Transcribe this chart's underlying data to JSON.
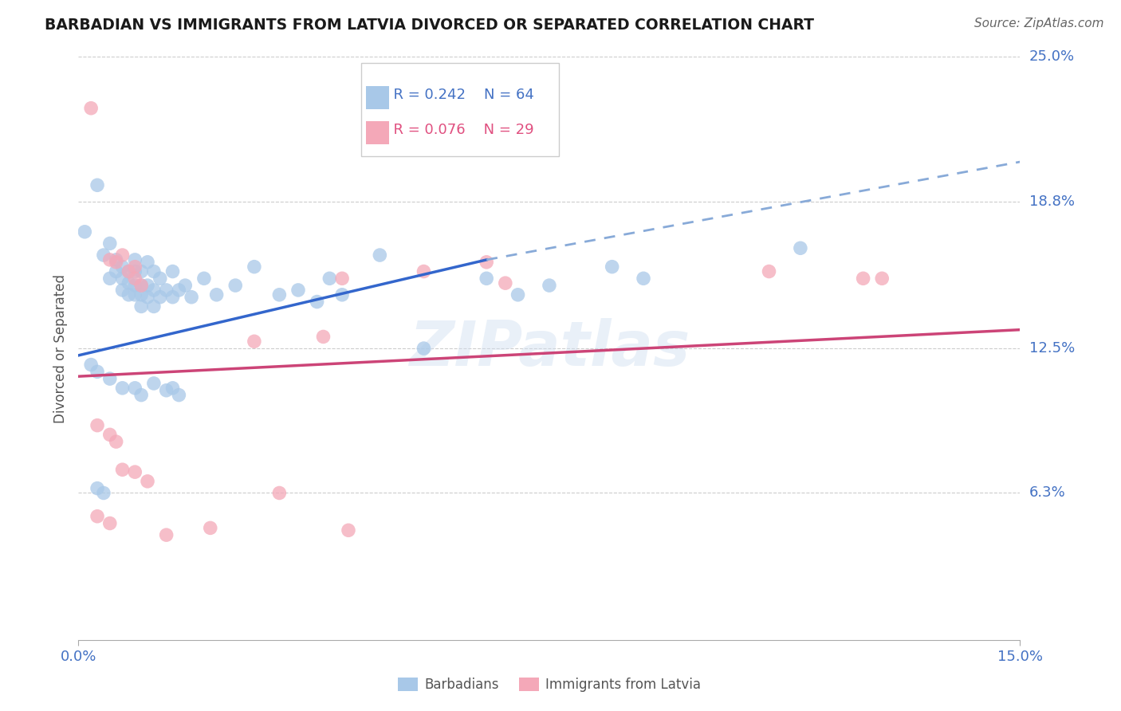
{
  "title": "BARBADIAN VS IMMIGRANTS FROM LATVIA DIVORCED OR SEPARATED CORRELATION CHART",
  "source": "Source: ZipAtlas.com",
  "ylabel": "Divorced or Separated",
  "xlim": [
    0.0,
    0.15
  ],
  "ylim": [
    0.0,
    0.25
  ],
  "ytick_labels": [
    "6.3%",
    "12.5%",
    "18.8%",
    "25.0%"
  ],
  "ytick_values": [
    0.063,
    0.125,
    0.188,
    0.25
  ],
  "xtick_values": [
    0.0,
    0.15
  ],
  "xtick_labels": [
    "0.0%",
    "15.0%"
  ],
  "legend_r1": "R = 0.242",
  "legend_n1": "N = 64",
  "legend_r2": "R = 0.076",
  "legend_n2": "N = 29",
  "color_blue": "#a8c8e8",
  "color_pink": "#f4a8b8",
  "line_color_blue": "#3366cc",
  "line_color_pink": "#cc4477",
  "line_color_blue_dash": "#88aad8",
  "watermark": "ZIPatlas",
  "blue_points": [
    [
      0.001,
      0.175
    ],
    [
      0.003,
      0.195
    ],
    [
      0.004,
      0.165
    ],
    [
      0.005,
      0.17
    ],
    [
      0.005,
      0.155
    ],
    [
      0.006,
      0.163
    ],
    [
      0.006,
      0.158
    ],
    [
      0.007,
      0.16
    ],
    [
      0.007,
      0.155
    ],
    [
      0.007,
      0.15
    ],
    [
      0.008,
      0.158
    ],
    [
      0.008,
      0.153
    ],
    [
      0.008,
      0.148
    ],
    [
      0.009,
      0.163
    ],
    [
      0.009,
      0.158
    ],
    [
      0.009,
      0.152
    ],
    [
      0.009,
      0.148
    ],
    [
      0.01,
      0.158
    ],
    [
      0.01,
      0.152
    ],
    [
      0.01,
      0.148
    ],
    [
      0.01,
      0.143
    ],
    [
      0.011,
      0.162
    ],
    [
      0.011,
      0.152
    ],
    [
      0.011,
      0.147
    ],
    [
      0.012,
      0.158
    ],
    [
      0.012,
      0.15
    ],
    [
      0.012,
      0.143
    ],
    [
      0.013,
      0.155
    ],
    [
      0.013,
      0.147
    ],
    [
      0.014,
      0.15
    ],
    [
      0.015,
      0.158
    ],
    [
      0.015,
      0.147
    ],
    [
      0.016,
      0.15
    ],
    [
      0.017,
      0.152
    ],
    [
      0.018,
      0.147
    ],
    [
      0.002,
      0.118
    ],
    [
      0.003,
      0.115
    ],
    [
      0.005,
      0.112
    ],
    [
      0.007,
      0.108
    ],
    [
      0.009,
      0.108
    ],
    [
      0.01,
      0.105
    ],
    [
      0.012,
      0.11
    ],
    [
      0.014,
      0.107
    ],
    [
      0.015,
      0.108
    ],
    [
      0.016,
      0.105
    ],
    [
      0.003,
      0.065
    ],
    [
      0.004,
      0.063
    ],
    [
      0.02,
      0.155
    ],
    [
      0.022,
      0.148
    ],
    [
      0.025,
      0.152
    ],
    [
      0.028,
      0.16
    ],
    [
      0.032,
      0.148
    ],
    [
      0.035,
      0.15
    ],
    [
      0.038,
      0.145
    ],
    [
      0.04,
      0.155
    ],
    [
      0.042,
      0.148
    ],
    [
      0.048,
      0.165
    ],
    [
      0.055,
      0.125
    ],
    [
      0.065,
      0.155
    ],
    [
      0.07,
      0.148
    ],
    [
      0.075,
      0.152
    ],
    [
      0.085,
      0.16
    ],
    [
      0.09,
      0.155
    ],
    [
      0.115,
      0.168
    ]
  ],
  "pink_points": [
    [
      0.002,
      0.228
    ],
    [
      0.005,
      0.163
    ],
    [
      0.006,
      0.162
    ],
    [
      0.007,
      0.165
    ],
    [
      0.008,
      0.158
    ],
    [
      0.009,
      0.16
    ],
    [
      0.009,
      0.155
    ],
    [
      0.01,
      0.152
    ],
    [
      0.003,
      0.092
    ],
    [
      0.005,
      0.088
    ],
    [
      0.006,
      0.085
    ],
    [
      0.003,
      0.053
    ],
    [
      0.005,
      0.05
    ],
    [
      0.007,
      0.073
    ],
    [
      0.009,
      0.072
    ],
    [
      0.011,
      0.068
    ],
    [
      0.014,
      0.045
    ],
    [
      0.021,
      0.048
    ],
    [
      0.028,
      0.128
    ],
    [
      0.039,
      0.13
    ],
    [
      0.042,
      0.155
    ],
    [
      0.032,
      0.063
    ],
    [
      0.043,
      0.047
    ],
    [
      0.055,
      0.158
    ],
    [
      0.065,
      0.162
    ],
    [
      0.068,
      0.153
    ],
    [
      0.11,
      0.158
    ],
    [
      0.125,
      0.155
    ],
    [
      0.128,
      0.155
    ]
  ],
  "blue_line_solid": {
    "x0": 0.0,
    "y0": 0.122,
    "x1": 0.065,
    "y1": 0.163
  },
  "blue_line_dash": {
    "x0": 0.065,
    "y0": 0.163,
    "x1": 0.15,
    "y1": 0.205
  },
  "pink_line": {
    "x0": 0.0,
    "y0": 0.113,
    "x1": 0.15,
    "y1": 0.133
  }
}
